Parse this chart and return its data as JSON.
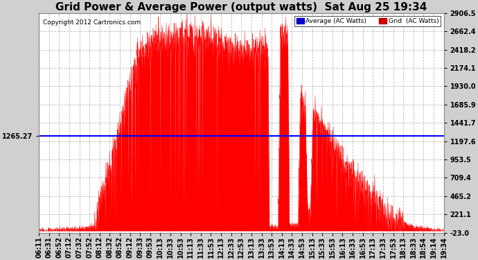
{
  "title": "Grid Power & Average Power (output watts)  Sat Aug 25 19:34",
  "copyright": "Copyright 2012 Cartronics.com",
  "average_value": 1265.27,
  "ymin": -23.0,
  "ymax": 2906.5,
  "yticks": [
    2906.5,
    2662.4,
    2418.2,
    2174.1,
    1930.0,
    1685.9,
    1441.7,
    1197.6,
    953.5,
    709.4,
    465.2,
    221.1,
    -23.0
  ],
  "background_color": "#ffffff",
  "outer_bg": "#d0d0d0",
  "grid_color": "#aaaaaa",
  "fill_color": "#ff0000",
  "avg_line_color": "#0000ff",
  "legend_avg_color": "#0000cc",
  "legend_grid_color": "#cc0000",
  "title_fontsize": 11,
  "tick_fontsize": 7,
  "xtick_labels": [
    "06:11",
    "06:31",
    "06:52",
    "07:12",
    "07:32",
    "07:52",
    "08:12",
    "08:32",
    "08:52",
    "09:12",
    "09:33",
    "09:53",
    "10:13",
    "10:33",
    "10:53",
    "11:13",
    "11:33",
    "11:53",
    "12:13",
    "12:33",
    "12:53",
    "13:13",
    "13:33",
    "13:53",
    "14:13",
    "14:33",
    "14:53",
    "15:13",
    "15:33",
    "15:53",
    "16:13",
    "16:33",
    "16:53",
    "17:13",
    "17:33",
    "17:53",
    "18:13",
    "18:33",
    "18:54",
    "19:14",
    "19:34"
  ]
}
